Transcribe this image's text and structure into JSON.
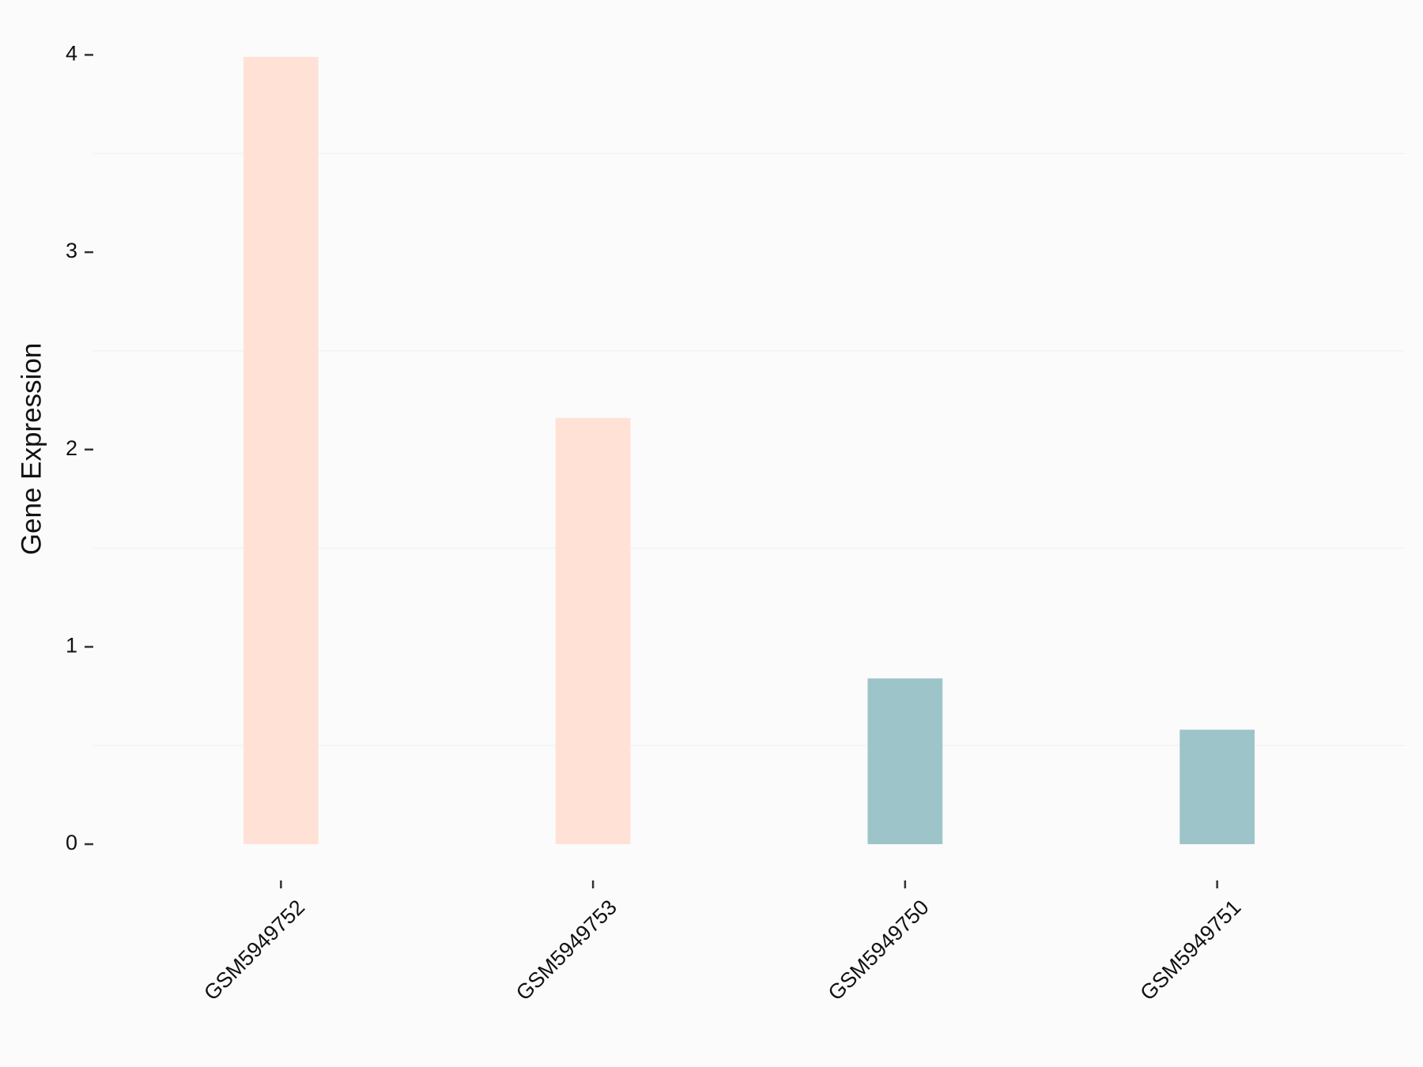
{
  "chart_data": {
    "type": "bar",
    "y_label": "Gene Expression",
    "categories": [
      "GSM5949752",
      "GSM5949753",
      "GSM5949750",
      "GSM5949751"
    ],
    "values": [
      3.99,
      2.16,
      0.84,
      0.58
    ],
    "colors": [
      "#ffe1d6",
      "#ffe1d6",
      "#9dc4c8",
      "#9dc4c8"
    ],
    "ylim": [
      -0.2,
      4.19
    ],
    "yticks": [
      0,
      1,
      2,
      3,
      4
    ],
    "minor_grid": [
      0.5,
      1.5,
      2.5,
      3.5
    ]
  }
}
